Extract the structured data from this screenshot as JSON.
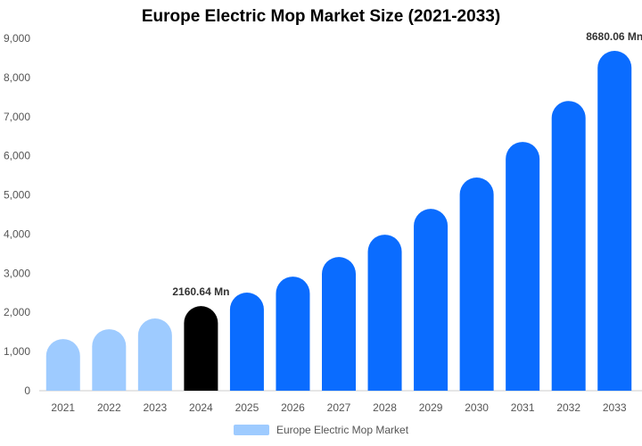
{
  "chart_data": {
    "type": "bar",
    "title": "Europe Electric Mop Market Size (2021-2033)",
    "categories": [
      "2021",
      "2022",
      "2023",
      "2024",
      "2025",
      "2026",
      "2027",
      "2028",
      "2029",
      "2030",
      "2031",
      "2032",
      "2033"
    ],
    "series": [
      {
        "name": "Europe Electric Mop Market",
        "values": [
          1320,
          1570,
          1845,
          2160.64,
          2505,
          2915,
          3415,
          3985,
          4645,
          5445,
          6355,
          7400,
          8680.06
        ]
      }
    ],
    "data_labels": {
      "3": "2160.64 Mn",
      "12": "8680.06 Mn"
    },
    "ylim": [
      0,
      9000
    ],
    "yticks": [
      0,
      1000,
      2000,
      3000,
      4000,
      5000,
      6000,
      7000,
      8000,
      9000
    ],
    "ytick_labels": [
      "0",
      "1,000",
      "2,000",
      "3,000",
      "4,000",
      "5,000",
      "6,000",
      "7,000",
      "8,000",
      "9,000"
    ],
    "xlabel": "",
    "ylabel": "",
    "grid": false,
    "legend": "bottom",
    "colors": {
      "historical": "#9ecbff",
      "base_year": "#000000",
      "forecast": "#0a6cff"
    }
  }
}
